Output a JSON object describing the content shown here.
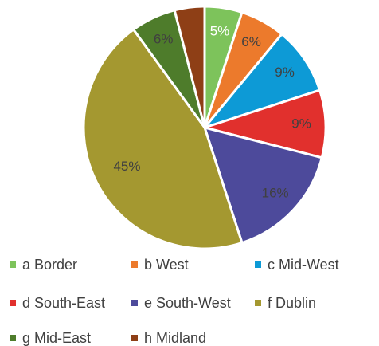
{
  "chart_data": {
    "type": "pie",
    "categories": [
      "a Border",
      "b West",
      "c Mid-West",
      "d South-East",
      "e South-West",
      "f Dublin",
      "g Mid-East",
      "h Midland"
    ],
    "values": [
      5,
      6,
      9,
      9,
      16,
      45,
      6,
      4
    ],
    "value_labels": [
      "5%",
      "6%",
      "9%",
      "9%",
      "16%",
      "45%",
      "6%",
      null
    ],
    "colors": [
      "#7dc35b",
      "#ec7a2c",
      "#0d9ad6",
      "#e1302d",
      "#4d4a9b",
      "#a49830",
      "#4e7c2b",
      "#8e3f16"
    ]
  }
}
